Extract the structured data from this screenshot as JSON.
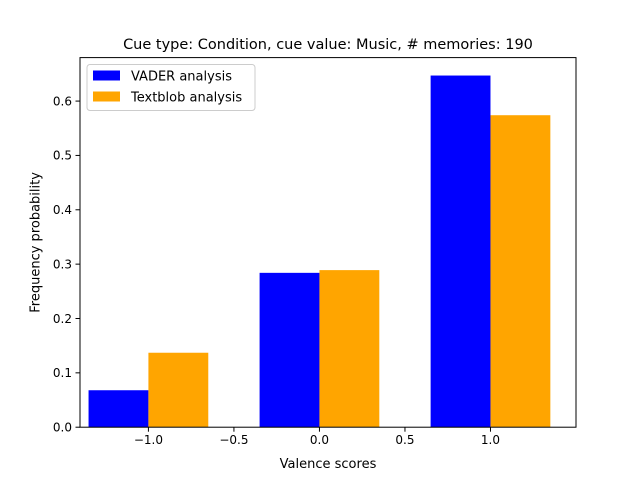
{
  "chart_data": {
    "type": "bar",
    "title": "Cue type: Condition, cue value: Music, # memories: 190",
    "xlabel": "Valence scores",
    "ylabel": "Frequency probability",
    "x": [
      -1.0,
      0.0,
      1.0
    ],
    "series": [
      {
        "name": "VADER analysis",
        "color": "#0000ff",
        "values": [
          0.068,
          0.284,
          0.647
        ]
      },
      {
        "name": "Textblob analysis",
        "color": "#ffa500",
        "values": [
          0.137,
          0.289,
          0.574
        ]
      }
    ],
    "xlim": [
      -1.4,
      1.5
    ],
    "ylim": [
      0,
      0.68
    ],
    "xticks": [
      -1.0,
      -0.5,
      0.0,
      0.5,
      1.0
    ],
    "xtick_labels": [
      "−1.0",
      "−0.5",
      "0.0",
      "0.5",
      "1.0"
    ],
    "yticks": [
      0.0,
      0.1,
      0.2,
      0.3,
      0.4,
      0.5,
      0.6
    ],
    "ytick_labels": [
      "0.0",
      "0.1",
      "0.2",
      "0.3",
      "0.4",
      "0.5",
      "0.6"
    ],
    "bar_width": 0.35,
    "legend_position": "top-left",
    "grid": false
  }
}
